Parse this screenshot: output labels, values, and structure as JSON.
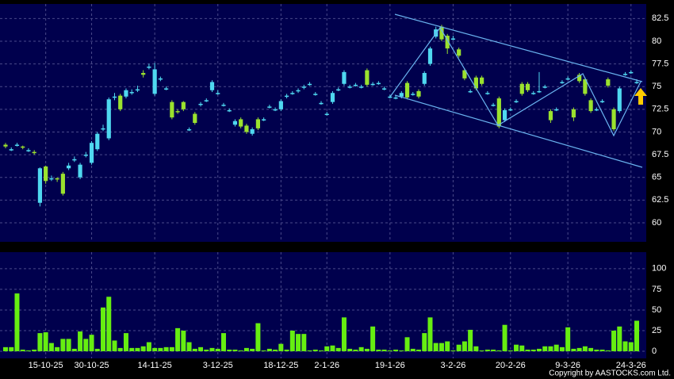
{
  "chart_data": [
    {
      "type": "candlestick",
      "categories": [
        null,
        null,
        null,
        null,
        null,
        null,
        null,
        "15-10-25",
        null,
        null,
        null,
        null,
        null,
        null,
        null,
        "30-10-25",
        null,
        null,
        null,
        null,
        null,
        null,
        null,
        null,
        null,
        null,
        "14-11-25",
        null,
        null,
        null,
        null,
        null,
        null,
        null,
        null,
        null,
        null,
        "3-12-25",
        null,
        null,
        null,
        null,
        null,
        null,
        null,
        null,
        null,
        null,
        "18-12-25",
        null,
        null,
        null,
        null,
        null,
        null,
        null,
        "2-1-26",
        null,
        null,
        null,
        null,
        null,
        null,
        null,
        null,
        null,
        null,
        "19-1-26",
        null,
        null,
        null,
        null,
        null,
        null,
        null,
        null,
        null,
        null,
        "3-2-26",
        null,
        null,
        null,
        null,
        null,
        null,
        null,
        null,
        null,
        "20-2-26",
        null,
        null,
        null,
        null,
        null,
        null,
        null,
        null,
        null,
        "9-3-26",
        null,
        null,
        null,
        null,
        null,
        null,
        null,
        null,
        null,
        null,
        "24-3-26",
        null
      ],
      "open": [
        68.6,
        68.0,
        68.5,
        68.4,
        68.0,
        67.8,
        62.2,
        66.2,
        64.8,
        64.9,
        65.4,
        66.0,
        66.9,
        65.0,
        67.4,
        66.6,
        68.1,
        70.3,
        69.3,
        73.8,
        74.0,
        73.9,
        74.3,
        74.6,
        76.5,
        77.1,
        74.2,
        75.8,
        74.8,
        73.3,
        72.3,
        73.3,
        70.3,
        72.0,
        73.0,
        73.5,
        74.6,
        74.3,
        73.0,
        72.4,
        70.8,
        71.4,
        70.7,
        69.8,
        71.4,
        71.4,
        72.8,
        72.4,
        72.5,
        73.9,
        74.2,
        74.5,
        74.9,
        75.3,
        74.2,
        73.2,
        72.0,
        73.3,
        74.7,
        75.3,
        75.0,
        75.2,
        75.0,
        76.8,
        75.3,
        75.4,
        74.8,
        73.9,
        73.8,
        73.9,
        75.4,
        74.2,
        74.5,
        75.3,
        77.5,
        80.5,
        81.6,
        80.6,
        80.3,
        79.1,
        76.8,
        74.5,
        76.0,
        76.0,
        74.3,
        73.0,
        73.7,
        71.3,
        72.5,
        73.4,
        75.3,
        75.3,
        74.3,
        74.5,
        75.0,
        72.3,
        72.5,
        75.5,
        75.9,
        72.5,
        76.3,
        75.8,
        73.5,
        72.5,
        73.4,
        75.8,
        72.5,
        72.3,
        76.4,
        76.6,
        75.5
      ],
      "high": [
        68.8,
        68.3,
        68.8,
        68.5,
        68.2,
        68.0,
        66.1,
        66.3,
        65.2,
        65.0,
        65.6,
        66.6,
        67.3,
        66.6,
        67.8,
        69.0,
        70.0,
        70.8,
        73.8,
        74.3,
        74.2,
        74.8,
        74.7,
        75.1,
        76.8,
        77.5,
        77.6,
        76.1,
        75.0,
        73.5,
        72.5,
        73.4,
        70.5,
        72.2,
        73.3,
        73.7,
        75.7,
        74.6,
        73.2,
        72.6,
        71.4,
        71.6,
        70.9,
        70.5,
        71.6,
        71.6,
        73.0,
        72.7,
        73.6,
        74.2,
        74.5,
        74.8,
        75.2,
        75.5,
        74.4,
        73.4,
        72.2,
        74.5,
        74.9,
        76.8,
        75.2,
        75.4,
        75.2,
        77.0,
        75.5,
        75.6,
        75.0,
        74.1,
        74.0,
        74.5,
        75.6,
        74.4,
        74.7,
        76.7,
        79.4,
        81.6,
        81.8,
        80.8,
        80.6,
        79.3,
        77.0,
        74.7,
        76.2,
        76.2,
        74.5,
        73.2,
        73.9,
        72.6,
        72.7,
        73.6,
        75.5,
        75.5,
        74.5,
        76.6,
        75.2,
        72.5,
        72.7,
        75.7,
        76.1,
        72.7,
        76.5,
        76.0,
        73.7,
        72.7,
        73.6,
        76.0,
        72.7,
        75.0,
        76.6,
        76.8,
        75.8
      ],
      "low": [
        68.2,
        67.9,
        68.4,
        68.1,
        67.8,
        67.5,
        61.8,
        64.3,
        64.6,
        64.5,
        63.0,
        65.8,
        66.7,
        64.8,
        67.2,
        66.4,
        67.9,
        70.1,
        69.1,
        73.5,
        72.3,
        73.7,
        74.1,
        74.4,
        76.0,
        76.9,
        74.0,
        75.6,
        74.6,
        71.4,
        72.0,
        72.3,
        70.1,
        70.8,
        72.8,
        73.3,
        74.4,
        74.1,
        72.8,
        72.2,
        70.6,
        70.4,
        69.8,
        69.6,
        70.2,
        71.2,
        72.6,
        72.3,
        72.3,
        73.7,
        74.1,
        74.3,
        74.7,
        75.1,
        74.0,
        73.0,
        71.8,
        73.1,
        74.5,
        75.1,
        74.8,
        75.0,
        74.8,
        75.0,
        75.1,
        75.2,
        74.6,
        73.7,
        73.6,
        73.7,
        73.6,
        74.0,
        73.7,
        75.1,
        77.3,
        80.3,
        80.0,
        78.6,
        80.1,
        78.2,
        75.7,
        74.3,
        74.6,
        75.1,
        74.1,
        72.8,
        70.4,
        71.1,
        72.3,
        73.2,
        74.0,
        74.4,
        74.1,
        74.3,
        74.8,
        71.0,
        72.3,
        75.3,
        75.7,
        71.2,
        75.4,
        74.0,
        72.1,
        72.3,
        73.2,
        74.9,
        70.1,
        72.1,
        76.2,
        76.4,
        75.3
      ],
      "close": [
        68.4,
        68.1,
        68.6,
        68.3,
        68.0,
        67.7,
        66.0,
        64.6,
        64.9,
        64.8,
        63.2,
        66.3,
        67.0,
        66.4,
        67.5,
        68.8,
        69.8,
        70.4,
        73.6,
        73.9,
        72.5,
        74.6,
        74.4,
        74.7,
        76.3,
        77.2,
        76.9,
        75.9,
        74.8,
        71.6,
        72.2,
        72.5,
        70.3,
        71.0,
        73.1,
        73.5,
        75.5,
        74.3,
        73.0,
        72.4,
        71.2,
        70.6,
        70.0,
        70.3,
        70.4,
        71.4,
        72.8,
        72.5,
        73.4,
        74.0,
        74.3,
        74.6,
        75.0,
        75.3,
        74.2,
        73.2,
        72.0,
        74.3,
        74.7,
        76.6,
        75.0,
        75.2,
        75.0,
        75.2,
        75.3,
        75.4,
        74.8,
        73.9,
        73.8,
        74.3,
        73.8,
        74.2,
        73.9,
        76.5,
        79.2,
        81.3,
        80.2,
        79.2,
        80.3,
        78.4,
        75.9,
        74.5,
        74.8,
        75.3,
        74.3,
        73.0,
        70.6,
        72.4,
        72.5,
        73.4,
        74.2,
        74.6,
        74.3,
        74.5,
        75.0,
        71.3,
        72.5,
        75.5,
        75.9,
        71.6,
        75.6,
        74.2,
        72.3,
        72.5,
        73.4,
        75.1,
        70.3,
        74.8,
        76.4,
        76.6,
        75.5
      ],
      "up_color": "#4fd8f0",
      "down_color": "#9be22e",
      "ylim": [
        57.9,
        84.1
      ],
      "yticks": [
        60,
        62.5,
        65,
        67.5,
        70,
        72.5,
        75,
        77.5,
        80,
        82.5
      ],
      "grid": true
    },
    {
      "type": "bar",
      "values": [
        5,
        5,
        70,
        2,
        1,
        2,
        22,
        23,
        10,
        5,
        15,
        15,
        3,
        24,
        15,
        20,
        3,
        53,
        66,
        13,
        4,
        22,
        4,
        4,
        6,
        11,
        4,
        4,
        5,
        5,
        28,
        25,
        11,
        3,
        5,
        2,
        4,
        3,
        22,
        2,
        2,
        1,
        4,
        3,
        34,
        1,
        3,
        2,
        9,
        2,
        25,
        21,
        21,
        1,
        2,
        1,
        6,
        7,
        4,
        41,
        3,
        2,
        5,
        3,
        30,
        2,
        2,
        1,
        2,
        1,
        17,
        3,
        2,
        22,
        41,
        10,
        10,
        12,
        1,
        8,
        12,
        26,
        6,
        1,
        2,
        2,
        1,
        32,
        1,
        8,
        7,
        2,
        2,
        3,
        6,
        6,
        8,
        5,
        29,
        3,
        4,
        6,
        4,
        2,
        2,
        1,
        25,
        30,
        12,
        11,
        37
      ],
      "color": "#66ee11",
      "ylim": [
        -8.6,
        120
      ],
      "yticks": [
        0,
        25,
        50,
        75,
        100
      ],
      "grid": true
    },
    {
      "type": "text",
      "copyright": "Copyright by AASTOCKS.com Ltd."
    }
  ]
}
